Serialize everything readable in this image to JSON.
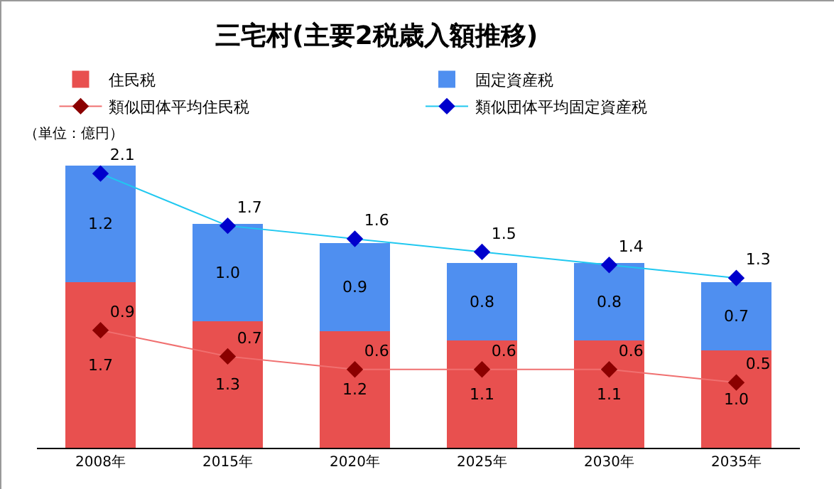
{
  "chart_data": {
    "type": "bar",
    "title": "三宅村(主要2税歳入額推移)",
    "annotations": [
      "（単位：億円）"
    ],
    "categories": [
      "2008年",
      "2015年",
      "2020年",
      "2025年",
      "2030年",
      "2035年"
    ],
    "stacked": true,
    "data_labels": true,
    "grid": false,
    "legend": "top",
    "marker": "diamond",
    "line_style": "solid",
    "series": [
      {
        "name": "住民税",
        "color": "#e8504f",
        "values": [
          1.7,
          1.3,
          1.2,
          1.1,
          1.1,
          1.0
        ],
        "value_labels": [
          "1.7",
          "1.3",
          "1.2",
          "1.1",
          "1.1",
          "1.0"
        ]
      },
      {
        "name": "固定資産税",
        "color": "#4f8ff0",
        "values": [
          1.2,
          1.0,
          0.9,
          0.8,
          0.8,
          0.7
        ],
        "value_labels": [
          "1.2",
          "1.0",
          "0.9",
          "0.8",
          "0.8",
          "0.7"
        ]
      },
      {
        "name": "類似団体平均住民税",
        "type": "line",
        "axis": "y2",
        "color": "#f07070",
        "values": [
          0.9,
          0.7,
          0.6,
          0.6,
          0.6,
          0.5
        ]
      },
      {
        "name": "類似団体平均固定資産税",
        "type": "line",
        "axis": "y2",
        "color": "#20c8f0",
        "values": [
          2.1,
          1.7,
          1.6,
          1.5,
          1.4,
          1.3
        ]
      }
    ]
  }
}
